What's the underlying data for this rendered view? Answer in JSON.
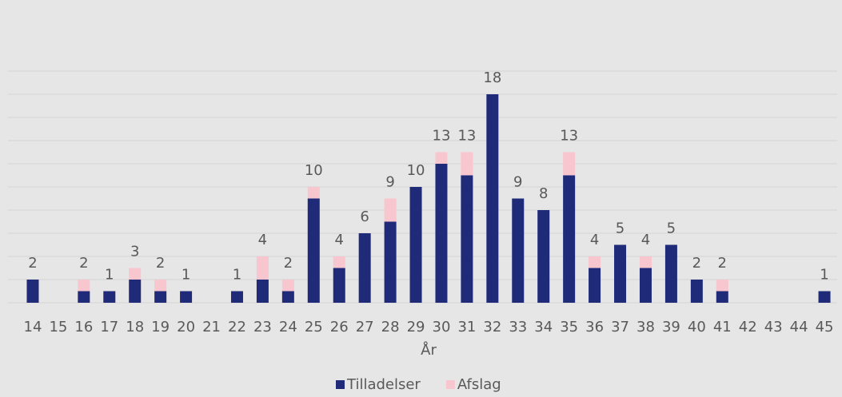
{
  "chart_data": {
    "type": "stacked-bar",
    "x_label": "År",
    "categories": [
      "14",
      "15",
      "16",
      "17",
      "18",
      "19",
      "20",
      "21",
      "22",
      "23",
      "24",
      "25",
      "26",
      "27",
      "28",
      "29",
      "30",
      "31",
      "32",
      "33",
      "34",
      "35",
      "36",
      "37",
      "38",
      "39",
      "40",
      "41",
      "42",
      "43",
      "44",
      "45"
    ],
    "series": [
      {
        "name": "Tilladelser",
        "color": "#1f2a78",
        "values": [
          2,
          0,
          1,
          1,
          2,
          1,
          1,
          0,
          1,
          2,
          1,
          9,
          3,
          6,
          7,
          10,
          12,
          11,
          18,
          9,
          8,
          11,
          3,
          5,
          3,
          5,
          2,
          1,
          0,
          0,
          0,
          1
        ]
      },
      {
        "name": "Afslag",
        "color": "#f8c6cf",
        "values": [
          0,
          0,
          1,
          0,
          1,
          1,
          0,
          0,
          0,
          2,
          1,
          1,
          1,
          0,
          2,
          0,
          1,
          2,
          0,
          0,
          0,
          2,
          1,
          0,
          1,
          0,
          0,
          1,
          0,
          0,
          0,
          0
        ]
      }
    ],
    "totals": [
      2,
      null,
      2,
      1,
      3,
      2,
      1,
      null,
      1,
      4,
      2,
      10,
      4,
      6,
      9,
      10,
      13,
      13,
      18,
      9,
      8,
      13,
      4,
      5,
      4,
      5,
      2,
      2,
      null,
      null,
      null,
      1
    ],
    "ylim": [
      0,
      20
    ],
    "yticks": [
      0,
      2,
      4,
      6,
      8,
      10,
      12,
      14,
      16,
      18,
      20
    ],
    "grid": true,
    "legend": "bottom"
  }
}
